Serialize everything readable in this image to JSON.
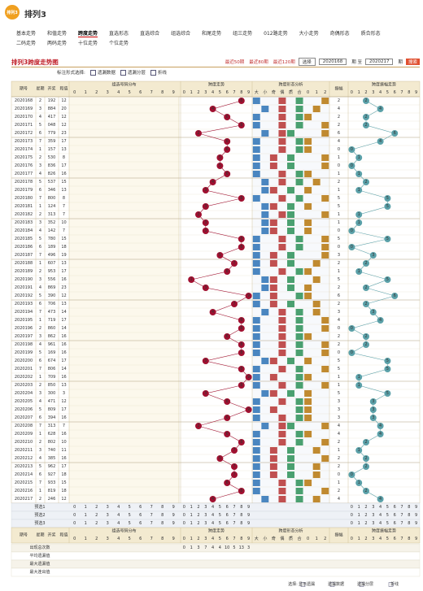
{
  "header": {
    "logo": "排列3",
    "title": "排列3"
  },
  "nav": [
    [
      "基本走势",
      "和值走势",
      "跨度走势",
      "直选形态",
      "直选综合",
      "组选综合",
      "和尾走势",
      "组三走势",
      "012路走势",
      "大小走势",
      "奇偶形态",
      "质合形态"
    ],
    [
      "二码走势",
      "两码走势",
      "十位走势",
      "个位走势"
    ]
  ],
  "nav_active": "跨度走势",
  "toolbar": {
    "title": "排列3跨度走势图",
    "links": [
      "最近50期",
      "最近80期",
      "最近120期"
    ],
    "select": "选择",
    "from": "2020168",
    "to_label": "期 至",
    "to": "2020217",
    "unit": "期",
    "button": "搜索"
  },
  "options": {
    "label": "标注形式选择:",
    "items": [
      "遗漏数据",
      "遗漏分层",
      "折线"
    ]
  },
  "table": {
    "columns": [
      "期号",
      "星期",
      "开奖",
      "和值"
    ],
    "groups": [
      "组选号码分布",
      "跨度走势",
      "跨度形态分析",
      "振幅",
      "跨度振幅走势"
    ],
    "digits": [
      0,
      1,
      2,
      3,
      4,
      5,
      6,
      7,
      8,
      9
    ],
    "forms": [
      "大",
      "小",
      "奇",
      "偶",
      "质",
      "合",
      "0",
      "1",
      "2"
    ],
    "rows": [
      [
        "2020168",
        2,
        "192",
        12,
        8,
        2
      ],
      [
        "2020169",
        3,
        "884",
        20,
        4,
        4
      ],
      [
        "2020170",
        4,
        "417",
        12,
        6,
        2
      ],
      [
        "2020171",
        5,
        "048",
        12,
        8,
        2
      ],
      [
        "2020172",
        6,
        "779",
        23,
        2,
        6
      ],
      [
        "2020173",
        7,
        "359",
        17,
        6,
        4
      ],
      [
        "2020174",
        1,
        "157",
        13,
        6,
        0
      ],
      [
        "2020175",
        2,
        "530",
        8,
        5,
        1
      ],
      [
        "2020176",
        3,
        "836",
        17,
        5,
        0
      ],
      [
        "2020177",
        4,
        "826",
        16,
        6,
        1
      ],
      [
        "2020178",
        5,
        "537",
        15,
        4,
        2
      ],
      [
        "2020179",
        6,
        "346",
        13,
        3,
        1
      ],
      [
        "2020180",
        7,
        "800",
        8,
        8,
        5
      ],
      [
        "2020181",
        1,
        "124",
        7,
        3,
        5
      ],
      [
        "2020182",
        2,
        "313",
        7,
        2,
        1
      ],
      [
        "2020183",
        3,
        "352",
        10,
        3,
        1
      ],
      [
        "2020184",
        4,
        "142",
        7,
        3,
        0
      ],
      [
        "2020185",
        5,
        "780",
        15,
        8,
        5
      ],
      [
        "2020186",
        6,
        "189",
        18,
        8,
        0
      ],
      [
        "2020187",
        7,
        "496",
        19,
        5,
        3
      ],
      [
        "2020188",
        1,
        "607",
        13,
        7,
        2
      ],
      [
        "2020189",
        2,
        "953",
        17,
        6,
        1
      ],
      [
        "2020190",
        3,
        "556",
        16,
        1,
        5
      ],
      [
        "2020191",
        4,
        "869",
        23,
        3,
        2
      ],
      [
        "2020192",
        5,
        "390",
        12,
        9,
        6
      ],
      [
        "2020193",
        6,
        "706",
        13,
        7,
        2
      ],
      [
        "2020194",
        7,
        "473",
        14,
        4,
        3
      ],
      [
        "2020195",
        1,
        "719",
        17,
        8,
        4
      ],
      [
        "2020196",
        2,
        "860",
        14,
        8,
        0
      ],
      [
        "2020197",
        3,
        "862",
        16,
        6,
        2
      ],
      [
        "2020198",
        4,
        "961",
        16,
        8,
        2
      ],
      [
        "2020199",
        5,
        "169",
        16,
        8,
        0
      ],
      [
        "2020200",
        6,
        "674",
        17,
        3,
        5
      ],
      [
        "2020201",
        7,
        "806",
        14,
        8,
        5
      ],
      [
        "2020202",
        1,
        "709",
        16,
        9,
        1
      ],
      [
        "2020203",
        2,
        "850",
        13,
        8,
        1
      ],
      [
        "2020204",
        3,
        "300",
        3,
        3,
        5
      ],
      [
        "2020205",
        4,
        "471",
        12,
        6,
        3
      ],
      [
        "2020206",
        5,
        "809",
        17,
        9,
        3
      ],
      [
        "2020207",
        6,
        "394",
        16,
        6,
        3
      ],
      [
        "2020208",
        7,
        "313",
        7,
        2,
        4
      ],
      [
        "2020209",
        1,
        "628",
        16,
        6,
        4
      ],
      [
        "2020210",
        2,
        "802",
        10,
        8,
        2
      ],
      [
        "2020211",
        3,
        "740",
        11,
        7,
        1
      ],
      [
        "2020212",
        4,
        "385",
        16,
        5,
        2
      ],
      [
        "2020213",
        5,
        "962",
        17,
        7,
        2
      ],
      [
        "2020214",
        6,
        "927",
        18,
        7,
        0
      ],
      [
        "2020215",
        7,
        "933",
        15,
        6,
        1
      ],
      [
        "2020216",
        1,
        "819",
        18,
        8,
        2
      ],
      [
        "2020217",
        2,
        "246",
        12,
        4,
        4
      ]
    ],
    "preselect": [
      "预选1",
      "预选2",
      "预选3"
    ],
    "stats": [
      "出现总次数",
      "平均遗漏值",
      "最大遗漏值",
      "最大连出值"
    ],
    "span_counts": [
      0,
      1,
      3,
      7,
      4,
      4,
      10,
      5,
      13,
      3
    ]
  },
  "footer": {
    "label": "选择:",
    "items": [
      "显示遗漏",
      "遗漏数据",
      "遗漏分层",
      "折线"
    ]
  }
}
